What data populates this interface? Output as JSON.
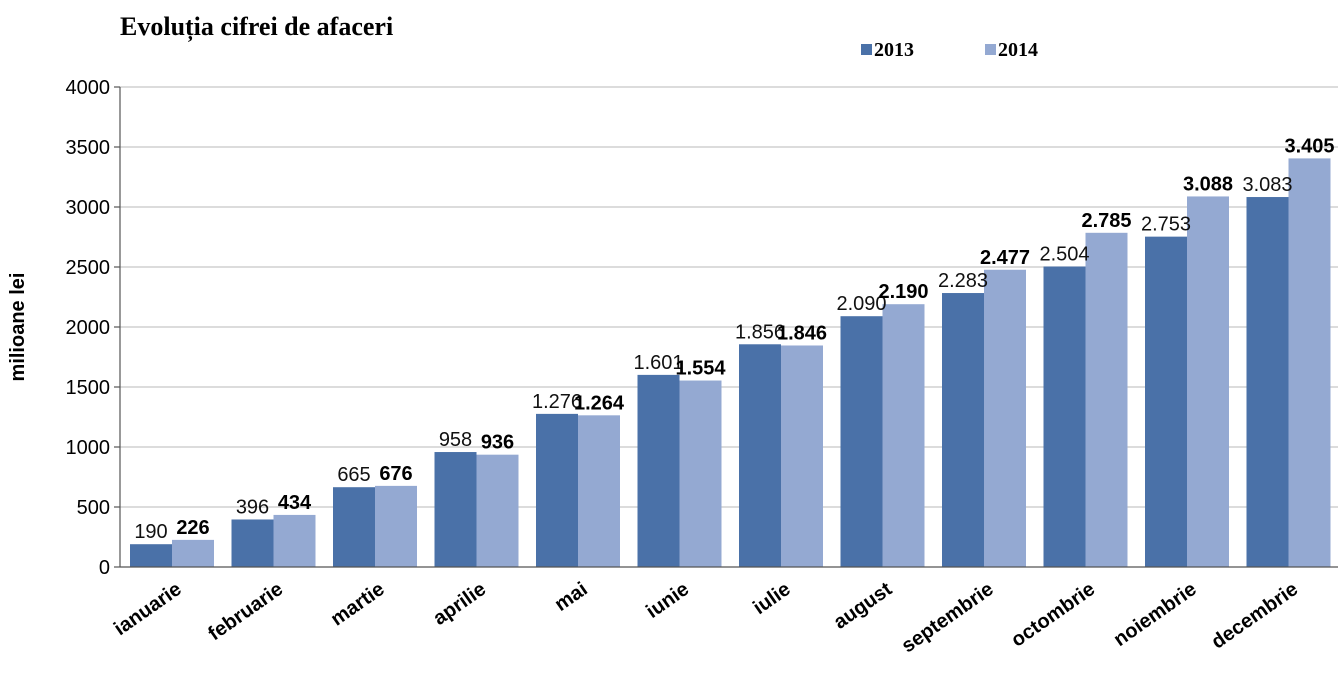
{
  "chart_data": {
    "type": "bar",
    "title": "Evoluția cifrei de afaceri",
    "ylabel": "milioane lei",
    "xlabel": "",
    "ylim": [
      0,
      4000
    ],
    "yticks": [
      0,
      500,
      1000,
      1500,
      2000,
      2500,
      3000,
      3500,
      4000
    ],
    "grid": true,
    "legend_position": "top-right",
    "categories": [
      "ianuarie",
      "februarie",
      "martie",
      "aprilie",
      "mai",
      "iunie",
      "iulie",
      "august",
      "septembrie",
      "octombrie",
      "noiembrie",
      "decembrie"
    ],
    "series": [
      {
        "name": "2013",
        "color": "#4a71a8",
        "values": [
          190,
          396,
          665,
          958,
          1276,
          1601,
          1856,
          2090,
          2283,
          2504,
          2753,
          3083
        ],
        "labels": [
          "190",
          "396",
          "665",
          "958",
          "1.276",
          "1.601",
          "1.856",
          "2.090",
          "2.283",
          "2.504",
          "2.753",
          "3.083"
        ]
      },
      {
        "name": "2014",
        "color": "#94a9d2",
        "values": [
          226,
          434,
          676,
          936,
          1264,
          1554,
          1846,
          2190,
          2477,
          2785,
          3088,
          3405
        ],
        "labels": [
          "226",
          "434",
          "676",
          "936",
          "1.264",
          "1.554",
          "1.846",
          "2.190",
          "2.477",
          "2.785",
          "3.088",
          "3.405"
        ]
      }
    ]
  }
}
